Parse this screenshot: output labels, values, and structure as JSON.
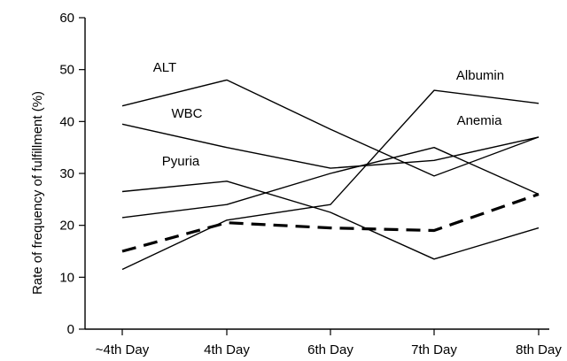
{
  "chart_data": {
    "type": "line",
    "title": "",
    "xlabel": "",
    "ylabel": "Rate of frequency of fulfillment (%)",
    "categories": [
      "~4th Day",
      "4th Day",
      "6th Day",
      "7th Day",
      "8th Day"
    ],
    "ylim": [
      0,
      60
    ],
    "yticks": [
      "0",
      "10",
      "20",
      "30",
      "40",
      "50",
      "60"
    ],
    "grid": false,
    "legend": "none (series labeled directly on plot)",
    "series": [
      {
        "name": "ALT",
        "values": [
          43,
          48,
          38.5,
          29.5,
          37
        ],
        "style": "solid",
        "color": "#000000"
      },
      {
        "name": "WBC",
        "values": [
          39.5,
          35,
          31,
          32.5,
          37
        ],
        "style": "solid",
        "color": "#000000"
      },
      {
        "name": "Pyuria",
        "values": [
          26.5,
          28.5,
          22.5,
          13.5,
          19.5
        ],
        "style": "solid",
        "color": "#000000"
      },
      {
        "name": "Albumin",
        "values": [
          11.5,
          21,
          24,
          46,
          43.5
        ],
        "style": "solid",
        "color": "#000000"
      },
      {
        "name": "Anemia",
        "values": [
          21.5,
          24,
          30,
          35,
          26
        ],
        "style": "solid",
        "color": "#000000"
      },
      {
        "name": "",
        "values": [
          15,
          20.5,
          19.5,
          19,
          26
        ],
        "style": "dashed",
        "color": "#000000"
      }
    ]
  }
}
